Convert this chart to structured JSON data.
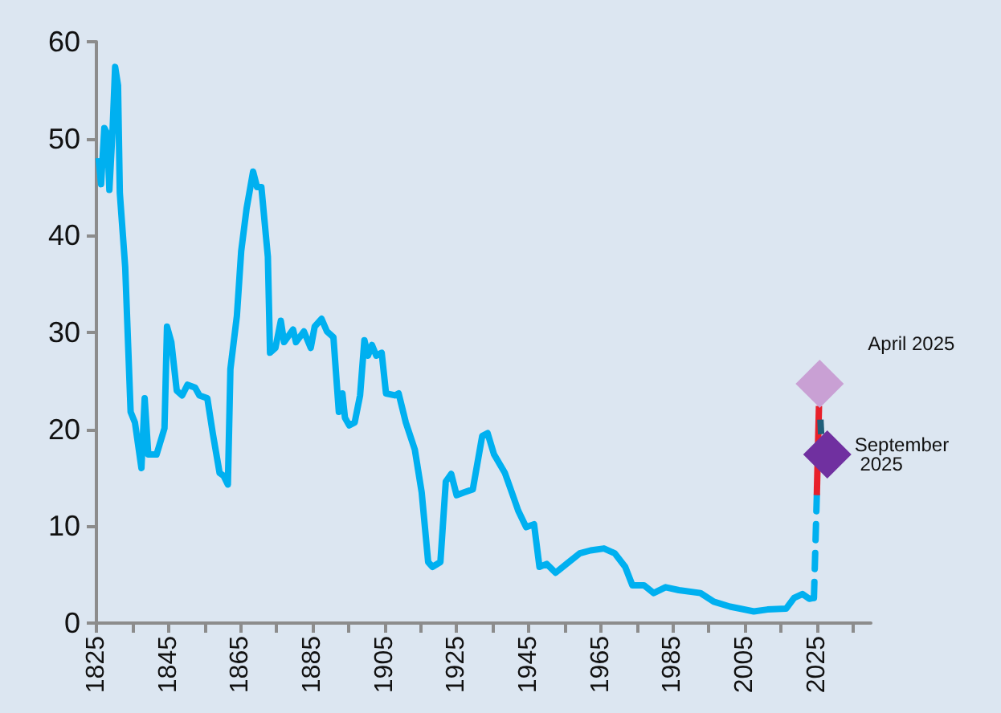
{
  "chart_data": {
    "type": "line",
    "legend": false,
    "grid": false,
    "xlim": [
      1825,
      2040
    ],
    "xticks": [
      1825,
      {
        "value": 1835,
        "label": null
      },
      1845,
      {
        "value": 1855,
        "label": null
      },
      1865,
      {
        "value": 1875,
        "label": null
      },
      1885,
      {
        "value": 1895,
        "label": null
      },
      1905,
      {
        "value": 1915,
        "label": null
      },
      1925,
      {
        "value": 1935,
        "label": null
      },
      1945,
      {
        "value": 1955,
        "label": null
      },
      1965,
      {
        "value": 1975,
        "label": null
      },
      1985,
      {
        "value": 1995,
        "label": null
      },
      2005,
      {
        "value": 2015,
        "label": null
      },
      2025,
      {
        "value": 2035,
        "label": null
      }
    ],
    "ylim": [
      0,
      60
    ],
    "yticks": [
      0,
      10,
      20,
      30,
      40,
      50,
      60
    ],
    "series": [
      {
        "color": "#00b0f0",
        "line_style": "solid",
        "x": [
          1825.6,
          1826.3,
          1827.2,
          1828,
          1828.6,
          1829.5,
          1830.2,
          1831,
          1831.5,
          1833,
          1834.5,
          1835.7,
          1837.5,
          1838.4,
          1839.4,
          1841.7,
          1843.9,
          1844.6,
          1845.8,
          1847.3,
          1848.8,
          1850.3,
          1852.4,
          1853.6,
          1855.8,
          1857.3,
          1859.2,
          1860.3,
          1861.5,
          1862.2,
          1864,
          1865.2,
          1866.7,
          1868.5,
          1869.6,
          1870.8,
          1872.6,
          1873.2,
          1874.7,
          1876.2,
          1877.1,
          1879.6,
          1880.4,
          1882.6,
          1884.5,
          1885.6,
          1887.5,
          1889,
          1890.8,
          1892.3,
          1893.3,
          1894,
          1895.2,
          1896.7,
          1898.2,
          1899.4,
          1900.4,
          1901.5,
          1902.7,
          1904.2,
          1905.4,
          1907.9,
          1908.9,
          1910.9,
          1913.4,
          1915.3,
          1917.1,
          1918.3,
          1920.5,
          1922,
          1923.5,
          1925,
          1927.2,
          1929.5,
          1932.1,
          1933.6,
          1935.4,
          1938.4,
          1940.6,
          1942.1,
          1944.3,
          1946.5,
          1948,
          1950,
          1952.5,
          1955.5,
          1959.2,
          1962.2,
          1965.9,
          1968.9,
          1971.8,
          1973.8,
          1977,
          1979.7,
          1983,
          1986.7,
          1992.7,
          1996.4,
          2000.9,
          2007.5,
          2011.3,
          2016.5,
          2018.7,
          2021,
          2022.9,
          2024.2
        ],
        "values": [
          48.0,
          45.3,
          51.1,
          50.5,
          44.7,
          51.0,
          57.4,
          55.5,
          44.4,
          36.7,
          21.8,
          20.7,
          16.0,
          23.2,
          17.4,
          17.4,
          20.1,
          30.6,
          29.0,
          24.0,
          23.5,
          24.6,
          24.3,
          23.5,
          23.2,
          19.6,
          15.5,
          15.2,
          14.3,
          26.2,
          31.7,
          38.4,
          42.8,
          46.6,
          45.0,
          45.0,
          37.8,
          27.9,
          28.4,
          31.2,
          29.0,
          30.3,
          29.0,
          30.1,
          28.4,
          30.6,
          31.4,
          30.1,
          29.5,
          21.8,
          23.7,
          21.2,
          20.4,
          20.7,
          23.5,
          29.2,
          27.6,
          28.7,
          27.6,
          27.9,
          23.7,
          23.5,
          23.7,
          20.7,
          17.9,
          13.5,
          6.3,
          5.8,
          6.3,
          14.6,
          15.4,
          13.2,
          13.5,
          13.8,
          19.3,
          19.6,
          17.4,
          15.5,
          13.2,
          11.6,
          9.9,
          10.2,
          5.8,
          6.1,
          5.2,
          6.1,
          7.2,
          7.5,
          7.7,
          7.2,
          5.8,
          3.9,
          3.9,
          3.1,
          3.7,
          3.4,
          3.1,
          2.2,
          1.7,
          1.2,
          1.4,
          1.5,
          2.6,
          3.0,
          2.5,
          2.6
        ]
      },
      {
        "color": "#00b0f0",
        "line_style": "dashed",
        "x": [
          2024.2,
          2025.0
        ],
        "values": [
          2.6,
          13.2
        ]
      },
      {
        "color": "#e8202a",
        "line_style": "solid",
        "x": [
          2025.0,
          2025.6
        ],
        "values": [
          13.2,
          22.4
        ]
      },
      {
        "color": "#1f5f7a",
        "line_style": "solid",
        "x": [
          2026.0,
          2026.2
        ],
        "values": [
          21.0,
          19.5
        ]
      },
      {
        "type": "scatter",
        "marker": "diamond",
        "name": "April 2025",
        "color": "#c9a0d4",
        "x": [
          2025.8
        ],
        "values": [
          24.7
        ]
      },
      {
        "type": "scatter",
        "marker": "diamond",
        "name": "September 2025",
        "color": "#7030a0",
        "x": [
          2027.9
        ],
        "values": [
          17.4
        ]
      }
    ]
  }
}
